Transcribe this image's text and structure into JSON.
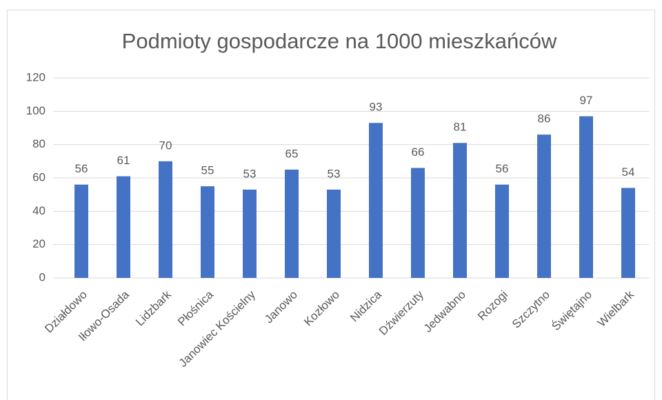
{
  "chart_data": {
    "type": "bar",
    "title": "Podmioty gospodarcze na 1000 mieszkańców",
    "categories": [
      "Działdowo",
      "Iłowo-Osada",
      "Lidzbark",
      "Płośnica",
      "Janowiec Kościelny",
      "Janowo",
      "Kozłowo",
      "Nidzica",
      "Dźwierzuty",
      "Jedwabno",
      "Rozogi",
      "Szczytno",
      "Świętajno",
      "Wielbark"
    ],
    "values": [
      56,
      61,
      70,
      55,
      53,
      65,
      53,
      93,
      66,
      81,
      56,
      86,
      97,
      54
    ],
    "color": "#4472c4",
    "ylim": [
      0,
      120
    ],
    "yticks": [
      0,
      20,
      40,
      60,
      80,
      100,
      120
    ],
    "grid": true
  }
}
